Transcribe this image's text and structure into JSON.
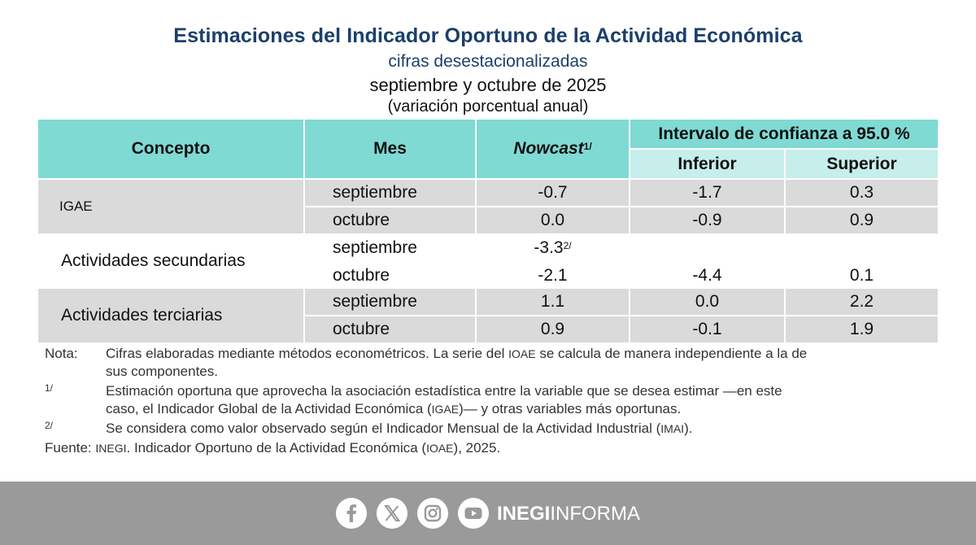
{
  "header": {
    "title": "Estimaciones del Indicador Oportuno de la Actividad Económica",
    "subtitle": "cifras desestacionalizadas",
    "period": "septiembre y octubre de 2025",
    "units": "(variación porcentual anual)"
  },
  "table": {
    "col_concepto": "Concepto",
    "col_mes": "Mes",
    "col_nowcast": "Nowcast",
    "col_nowcast_sup": "1/",
    "col_intervalo": "Intervalo de confianza a 95.0 %",
    "col_inferior": "Inferior",
    "col_superior": "Superior",
    "groups": [
      {
        "concept": "IGAE",
        "rows": [
          {
            "mes": "septiembre",
            "nowcast": "-0.7",
            "inferior": "-1.7",
            "superior": "0.3"
          },
          {
            "mes": "octubre",
            "nowcast": "0.0",
            "inferior": "-0.9",
            "superior": "0.9"
          }
        ]
      },
      {
        "concept": "Actividades secundarias",
        "rows": [
          {
            "mes": "septiembre",
            "nowcast": "-3.3",
            "nowcast_sup": "2/",
            "inferior": "",
            "superior": ""
          },
          {
            "mes": "octubre",
            "nowcast": "-2.1",
            "inferior": "-4.4",
            "superior": "0.1"
          }
        ]
      },
      {
        "concept": "Actividades terciarias",
        "rows": [
          {
            "mes": "septiembre",
            "nowcast": "1.1",
            "inferior": "0.0",
            "superior": "2.2"
          },
          {
            "mes": "octubre",
            "nowcast": "0.9",
            "inferior": "-0.1",
            "superior": "1.9"
          }
        ]
      }
    ]
  },
  "notes": {
    "nota_label": "Nota:",
    "nota_a": "Cifras elaboradas mediante métodos econométricos. La serie del ",
    "nota_ioae": "IOAE",
    "nota_b": " se calcula de manera independiente a la de",
    "nota_c": "sus componentes.",
    "n1_label": "1/",
    "n1_a": "Estimación oportuna que aprovecha la asociación estadística entre la variable que se desea estimar —en este",
    "n1_b1": "caso, el Indicador Global de la Actividad Económica (",
    "n1_igae": "IGAE",
    "n1_b2": ")— y otras variables más oportunas.",
    "n2_label": "2/",
    "n2_a": "Se considera como valor observado según el Indicador Mensual de la Actividad Industrial (",
    "n2_imai": "IMAI",
    "n2_b": ").",
    "fuente_label": "Fuente:",
    "fuente_inegi": "INEGI",
    "fuente_a": ". Indicador Oportuno de la Actividad Económica (",
    "fuente_ioae": "IOAE",
    "fuente_b": "), 2025."
  },
  "footer": {
    "brand_bold": "INEGI",
    "brand_light": "INFORMA",
    "icons": [
      "facebook-icon",
      "x-icon",
      "instagram-icon",
      "youtube-icon"
    ]
  },
  "colors": {
    "title": "#1b3f6b",
    "header_bg": "#7fdad4",
    "subheader_bg": "#c6eeeb",
    "row_gray": "#dadada",
    "footer_bg": "#9a9a9a"
  }
}
